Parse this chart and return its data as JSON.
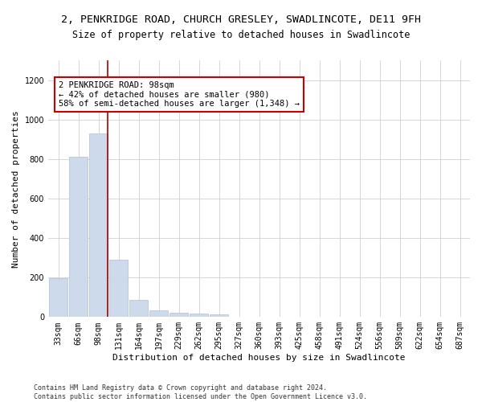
{
  "title": "2, PENKRIDGE ROAD, CHURCH GRESLEY, SWADLINCOTE, DE11 9FH",
  "subtitle": "Size of property relative to detached houses in Swadlincote",
  "xlabel": "Distribution of detached houses by size in Swadlincote",
  "ylabel": "Number of detached properties",
  "categories": [
    "33sqm",
    "66sqm",
    "98sqm",
    "131sqm",
    "164sqm",
    "197sqm",
    "229sqm",
    "262sqm",
    "295sqm",
    "327sqm",
    "360sqm",
    "393sqm",
    "425sqm",
    "458sqm",
    "491sqm",
    "524sqm",
    "556sqm",
    "589sqm",
    "622sqm",
    "654sqm",
    "687sqm"
  ],
  "values": [
    195,
    810,
    930,
    290,
    85,
    35,
    20,
    18,
    12,
    0,
    0,
    0,
    0,
    0,
    0,
    0,
    0,
    0,
    0,
    0,
    0
  ],
  "bar_color": "#cddaeb",
  "bar_edge_color": "#b0bfd0",
  "marker_line_color": "#aa0000",
  "annotation_text": "2 PENKRIDGE ROAD: 98sqm\n← 42% of detached houses are smaller (980)\n58% of semi-detached houses are larger (1,348) →",
  "annotation_box_color": "#ffffff",
  "annotation_box_edge_color": "#cc0000",
  "ylim": [
    0,
    1300
  ],
  "yticks": [
    0,
    200,
    400,
    600,
    800,
    1000,
    1200
  ],
  "footer_text": "Contains HM Land Registry data © Crown copyright and database right 2024.\nContains public sector information licensed under the Open Government Licence v3.0.",
  "bg_color": "#ffffff",
  "plot_bg_color": "#ffffff",
  "grid_color": "#d0d0d0",
  "title_fontsize": 9.5,
  "subtitle_fontsize": 8.5,
  "axis_label_fontsize": 8,
  "tick_fontsize": 7,
  "annotation_fontsize": 7.5,
  "footer_fontsize": 6
}
